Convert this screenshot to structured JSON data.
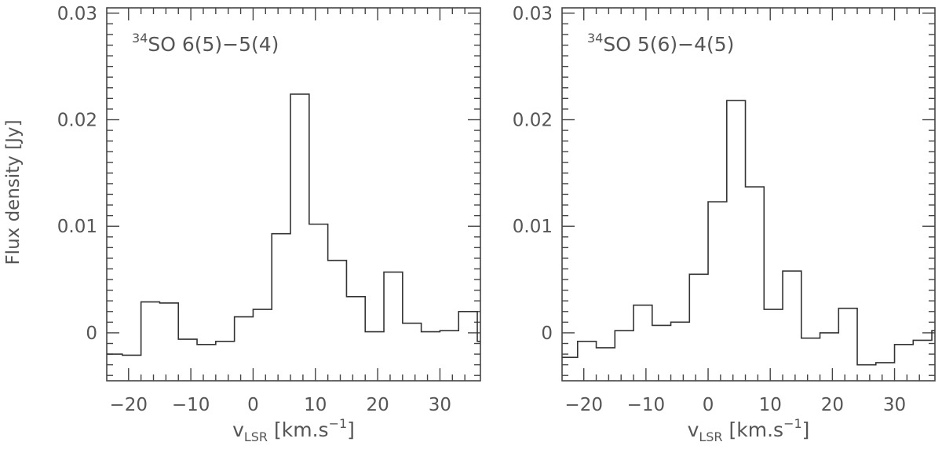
{
  "figure": {
    "ylabel": "Flux density [Jy]",
    "xlabel_main": "v",
    "xlabel_sub": "LSR",
    "xlabel_unit": "[km.s",
    "xlabel_exp": "−1",
    "xlabel_close": "]"
  },
  "chart_data": [
    {
      "type": "line",
      "step": true,
      "title": "34SO 6(5)−5(4)",
      "title_parts": {
        "sup": "34",
        "text": "SO  6(5)−5(4)"
      },
      "xlim": [
        -23.5,
        36.5
      ],
      "ylim": [
        -0.0045,
        0.0305
      ],
      "xticks": [
        -20,
        -10,
        0,
        10,
        20,
        30
      ],
      "xtick_labels": [
        "−20",
        "−10",
        "0",
        "10",
        "20",
        "30"
      ],
      "yticks": [
        0,
        0.01,
        0.02,
        0.03
      ],
      "ytick_labels": [
        "0",
        "0.01",
        "0.02",
        "0.03"
      ],
      "bin_width": 3.0,
      "x": [
        -22.5,
        -19.5,
        -16.5,
        -13.5,
        -10.5,
        -7.5,
        -4.5,
        -1.5,
        1.5,
        4.5,
        7.5,
        10.5,
        13.5,
        16.5,
        19.5,
        22.5,
        25.5,
        28.5,
        31.5,
        34.5
      ],
      "values": [
        -0.002,
        -0.0021,
        0.0029,
        0.0028,
        -0.0006,
        -0.0011,
        -0.0008,
        0.0015,
        0.0022,
        0.0093,
        0.0224,
        0.0102,
        0.0068,
        0.0034,
        0.0001,
        0.0057,
        0.0009,
        0.0001,
        0.0002,
        0.002
      ],
      "edge_value": -0.0008
    },
    {
      "type": "line",
      "step": true,
      "title": "34SO 5(6)−4(5)",
      "title_parts": {
        "sup": "34",
        "text": "SO  5(6)−4(5)"
      },
      "xlim": [
        -23.5,
        36.5
      ],
      "ylim": [
        -0.0045,
        0.0305
      ],
      "xticks": [
        -20,
        -10,
        0,
        10,
        20,
        30
      ],
      "xtick_labels": [
        "−20",
        "−10",
        "0",
        "10",
        "20",
        "30"
      ],
      "yticks": [
        0,
        0.01,
        0.02,
        0.03
      ],
      "ytick_labels": [
        "0",
        "0.01",
        "0.02",
        "0.03"
      ],
      "bin_width": 3.0,
      "x": [
        -22.5,
        -19.5,
        -16.5,
        -13.5,
        -10.5,
        -7.5,
        -4.5,
        -1.5,
        1.5,
        4.5,
        7.5,
        10.5,
        13.5,
        16.5,
        19.5,
        22.5,
        25.5,
        28.5,
        31.5,
        34.5
      ],
      "values": [
        -0.0023,
        -0.0008,
        -0.0014,
        0.0002,
        0.0026,
        0.0007,
        0.001,
        0.0055,
        0.0123,
        0.0218,
        0.0137,
        0.0022,
        0.0058,
        -0.0005,
        0.0,
        0.0023,
        -0.003,
        -0.0028,
        -0.0011,
        -0.0007
      ],
      "edge_value": 0.0002
    }
  ]
}
